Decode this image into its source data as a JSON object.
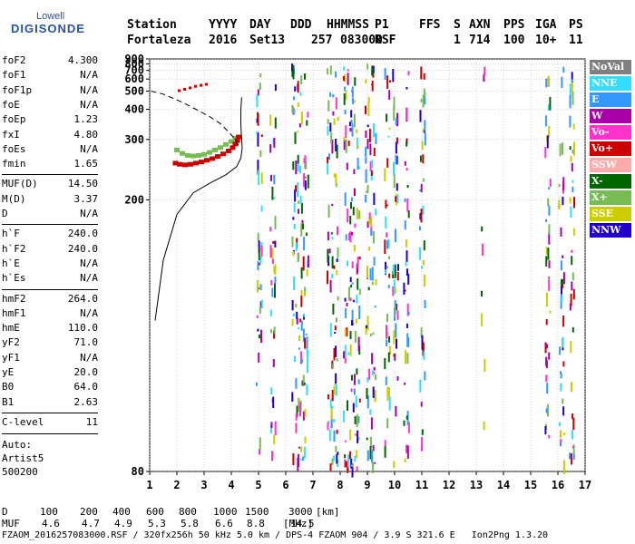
{
  "logo": {
    "line1": "Lowell",
    "line2": "DIGISONDE"
  },
  "header": {
    "labels": [
      "Station",
      "YYYY",
      "DAY",
      "DDD",
      "HHMMSS",
      "P1",
      "FFS",
      "S",
      "AXN",
      "PPS",
      "IGA",
      "PS"
    ],
    "values": [
      "Fortaleza",
      "2016",
      "Set13",
      "257",
      "083000",
      "RSF",
      "1",
      "714",
      "100",
      "10+",
      "11"
    ]
  },
  "params": [
    {
      "group": [
        [
          "foF2",
          "4.300"
        ],
        [
          "foF1",
          "N/A"
        ],
        [
          "foF1p",
          "N/A"
        ],
        [
          "foE",
          "N/A"
        ],
        [
          "foEp",
          "1.23"
        ],
        [
          "fxI",
          "4.80"
        ],
        [
          "foEs",
          "N/A"
        ],
        [
          "fmin",
          "1.65"
        ]
      ]
    },
    {
      "group": [
        [
          "MUF(D)",
          "14.50"
        ],
        [
          "M(D)",
          "3.37"
        ],
        [
          "D",
          "N/A"
        ]
      ]
    },
    {
      "group": [
        [
          "h`F",
          "240.0"
        ],
        [
          "h`F2",
          "240.0"
        ],
        [
          "h`E",
          "N/A"
        ],
        [
          "h`Es",
          "N/A"
        ]
      ]
    },
    {
      "group": [
        [
          "hmF2",
          "264.0"
        ],
        [
          "hmF1",
          "N/A"
        ],
        [
          "hmE",
          "110.0"
        ],
        [
          "yF2",
          "71.0"
        ],
        [
          "yF1",
          "N/A"
        ],
        [
          "yE",
          "20.0"
        ],
        [
          "B0",
          "64.0"
        ],
        [
          "B1",
          "2.63"
        ]
      ]
    },
    {
      "group": [
        [
          "C-level",
          "11"
        ]
      ]
    }
  ],
  "auto": [
    "Auto:",
    "Artist5",
    "500200"
  ],
  "legend": [
    {
      "label": "NoVal",
      "color": "#808080"
    },
    {
      "label": "NNE",
      "color": "#33ddff"
    },
    {
      "label": "E",
      "color": "#3399ff"
    },
    {
      "label": "W",
      "color": "#aa00aa"
    },
    {
      "label": "Vo-",
      "color": "#ff33cc"
    },
    {
      "label": "Vo+",
      "color": "#cc0000"
    },
    {
      "label": "SSW",
      "color": "#ffaaaa"
    },
    {
      "label": "X-",
      "color": "#006600"
    },
    {
      "label": "X+",
      "color": "#77bb55"
    },
    {
      "label": "SSE",
      "color": "#cccc00"
    },
    {
      "label": "NNW",
      "color": "#2200cc"
    }
  ],
  "muf_table": {
    "d_label": "D",
    "d_values": [
      "100",
      "200",
      "400",
      "600",
      "800",
      "1000",
      "1500",
      "3000"
    ],
    "d_unit": "[km]",
    "muf_label": "MUF",
    "muf_values": [
      "4.6",
      "4.7",
      "4.9",
      "5.3",
      "5.8",
      "6.6",
      "8.8",
      "14.5"
    ],
    "muf_unit": "[MHz]"
  },
  "footer": "FZAOM_2016257083000.RSF / 320fx256h 50 kHz 5.0 km / DPS-4 FZAOM 904 / 3.9 S 321.6 E   Ion2Png 1.3.20",
  "chart_data": {
    "type": "scatter",
    "title": "",
    "xlabel": "",
    "ylabel": "",
    "xlim": [
      1,
      17
    ],
    "ylim": [
      80,
      900
    ],
    "yscale": "reciprocal",
    "x_ticks": [
      1,
      2,
      3,
      4,
      5,
      6,
      7,
      8,
      9,
      10,
      11,
      12,
      13,
      14,
      15,
      16,
      17
    ],
    "y_ticks": [
      80,
      200,
      300,
      400,
      500,
      600,
      700,
      800,
      900
    ],
    "grid": true,
    "f2_trace_o": [
      [
        1.95,
        250
      ],
      [
        2.1,
        248
      ],
      [
        2.3,
        247
      ],
      [
        2.5,
        248
      ],
      [
        2.7,
        250
      ],
      [
        2.9,
        252
      ],
      [
        3.1,
        255
      ],
      [
        3.3,
        258
      ],
      [
        3.5,
        262
      ],
      [
        3.7,
        267
      ],
      [
        3.9,
        273
      ],
      [
        4.05,
        280
      ],
      [
        4.15,
        288
      ],
      [
        4.22,
        296
      ],
      [
        4.27,
        305
      ]
    ],
    "f2_trace_x": [
      [
        2.0,
        275
      ],
      [
        2.2,
        268
      ],
      [
        2.4,
        264
      ],
      [
        2.6,
        263
      ],
      [
        2.8,
        264
      ],
      [
        3.0,
        266
      ],
      [
        3.2,
        270
      ],
      [
        3.4,
        275
      ],
      [
        3.6,
        280
      ],
      [
        3.8,
        287
      ],
      [
        4.0,
        294
      ],
      [
        4.15,
        302
      ]
    ],
    "spread_echo": [
      [
        2.1,
        500
      ],
      [
        2.3,
        510
      ],
      [
        2.5,
        520
      ],
      [
        2.7,
        532
      ],
      [
        2.9,
        540
      ],
      [
        3.1,
        548
      ]
    ],
    "profile_solid": [
      [
        1.2,
        120
      ],
      [
        1.5,
        150
      ],
      [
        2.0,
        185
      ],
      [
        2.6,
        208
      ],
      [
        3.2,
        220
      ],
      [
        3.8,
        232
      ],
      [
        4.2,
        245
      ],
      [
        4.35,
        260
      ],
      [
        4.4,
        280
      ],
      [
        4.38,
        300
      ],
      [
        4.35,
        340
      ],
      [
        4.35,
        400
      ],
      [
        4.38,
        460
      ]
    ],
    "profile_dashed": [
      [
        1.05,
        500
      ],
      [
        1.5,
        480
      ],
      [
        2.1,
        440
      ],
      [
        2.7,
        400
      ],
      [
        3.2,
        370
      ],
      [
        3.6,
        345
      ],
      [
        3.9,
        320
      ],
      [
        4.15,
        300
      ],
      [
        4.3,
        282
      ]
    ],
    "interference_columns": [
      5.0,
      5.5,
      6.3,
      6.5,
      6.7,
      7.6,
      7.8,
      8.2,
      8.4,
      8.6,
      9.0,
      9.2,
      9.7,
      10.0,
      10.4,
      11.0,
      13.2,
      15.6,
      16.1,
      16.5
    ]
  }
}
